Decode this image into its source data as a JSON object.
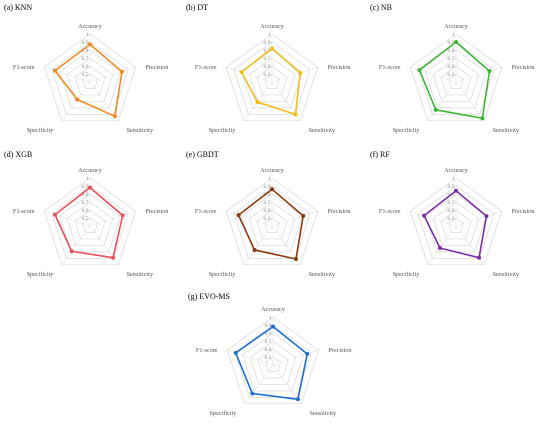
{
  "chart_data": [
    {
      "type": "radar",
      "title": "(a) KNN",
      "color": "#F08A24",
      "axes": [
        "Accuracy",
        "Precision",
        "Sensitivity",
        "Specificity",
        "F1-score"
      ],
      "ticks": [
        "1",
        "0.9",
        "0.8",
        "0.7",
        "0.6",
        "0.5"
      ],
      "rlim": [
        0.4,
        1
      ],
      "values": [
        0.87,
        0.82,
        0.93,
        0.67,
        0.86
      ]
    },
    {
      "type": "radar",
      "title": "(b) DT",
      "color": "#F2BE1A",
      "axes": [
        "Accuracy",
        "Precision",
        "Sensitivity",
        "Specificity",
        "F1-score"
      ],
      "ticks": [
        "1",
        "0.9",
        "0.8",
        "0.7",
        "0.6",
        "0.5"
      ],
      "rlim": [
        0.4,
        1
      ],
      "values": [
        0.82,
        0.77,
        0.9,
        0.71,
        0.8
      ]
    },
    {
      "type": "radar",
      "title": "(c) NB",
      "color": "#3DB535",
      "axes": [
        "Accuracy",
        "Precision",
        "Sensitivity",
        "Specificity",
        "F1-score"
      ],
      "ticks": [
        "1",
        "0.9",
        "0.8",
        "0.7",
        "0.6",
        "0.5"
      ],
      "rlim": [
        0.4,
        1
      ],
      "values": [
        0.9,
        0.84,
        0.96,
        0.83,
        0.88
      ]
    },
    {
      "type": "radar",
      "title": "(d) XGB",
      "color": "#E8505B",
      "axes": [
        "Accuracy",
        "Precision",
        "Sensitivity",
        "Specificity",
        "F1-score"
      ],
      "ticks": [
        "1",
        "0.9",
        "0.8",
        "0.7",
        "0.6",
        "0.5"
      ],
      "rlim": [
        0.4,
        1
      ],
      "values": [
        0.88,
        0.83,
        0.89,
        0.79,
        0.86
      ]
    },
    {
      "type": "radar",
      "title": "(e) GBDT",
      "color": "#8B3A0F",
      "axes": [
        "Accuracy",
        "Precision",
        "Sensitivity",
        "Specificity",
        "F1-score"
      ],
      "ticks": [
        "1",
        "0.9",
        "0.8",
        "0.7",
        "0.6",
        "0.5"
      ],
      "rlim": [
        0.4,
        1
      ],
      "values": [
        0.86,
        0.81,
        0.91,
        0.77,
        0.84
      ]
    },
    {
      "type": "radar",
      "title": "(f) RF",
      "color": "#7B2FA8",
      "axes": [
        "Accuracy",
        "Precision",
        "Sensitivity",
        "Specificity",
        "F1-score"
      ],
      "ticks": [
        "1",
        "0.9",
        "0.8",
        "0.7",
        "0.6",
        "0.5"
      ],
      "rlim": [
        0.4,
        1
      ],
      "values": [
        0.84,
        0.8,
        0.89,
        0.74,
        0.82
      ]
    },
    {
      "type": "radar",
      "title": "(g) EVO-MS",
      "color": "#1F6FD1",
      "axes": [
        "Accuracy",
        "Precision",
        "Sensitivity",
        "Specificity",
        "F1-score"
      ],
      "ticks": [
        "1",
        "0.9",
        "0.8",
        "0.7",
        "0.6",
        "0.5"
      ],
      "rlim": [
        0.4,
        1
      ],
      "values": [
        0.88,
        0.85,
        0.93,
        0.84,
        0.89
      ]
    }
  ]
}
